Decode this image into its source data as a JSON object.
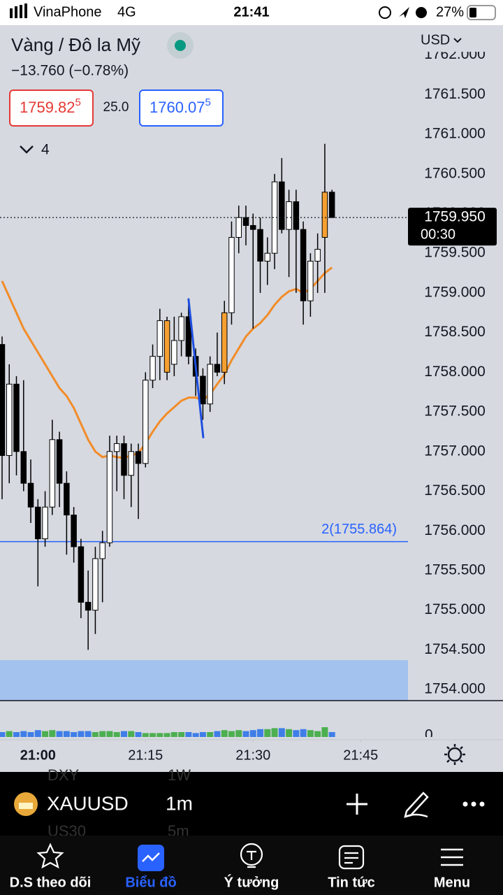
{
  "status_bar": {
    "carrier": "VinaPhone",
    "network": "4G",
    "time": "21:41",
    "battery": "27%"
  },
  "header": {
    "title": "Vàng / Đô la Mỹ",
    "change": "−13.760 (−0.78%)",
    "bid": "1759.82",
    "bid_sup": "5",
    "spread": "25.0",
    "ask": "1760.07",
    "ask_sup": "5",
    "currency": "USD",
    "indicators": "4"
  },
  "chart_data": {
    "type": "candlestick",
    "open": [
      1758.35,
      1756.95,
      1757.85,
      1757.0,
      1756.6,
      1756.3,
      1755.9,
      1756.3,
      1757.15,
      1756.6,
      1756.2,
      1755.8,
      1755.1,
      1755.0,
      1755.65,
      1755.85,
      1757.0,
      1757.1,
      1756.7,
      1757.0,
      1756.85,
      1757.9,
      1758.2,
      1758.0,
      1758.1,
      1758.4,
      1758.7,
      1758.2,
      1757.95,
      1757.6,
      1758.1,
      1758.0,
      1758.75,
      1759.7,
      1759.95,
      1759.85,
      1759.8,
      1759.4,
      1759.5,
      1760.4,
      1759.8,
      1760.15,
      1759.8,
      1758.9,
      1759.4,
      1759.7,
      1760.27
    ],
    "high": [
      1758.45,
      1758.1,
      1757.95,
      1757.9,
      1756.9,
      1756.4,
      1756.5,
      1757.4,
      1757.25,
      1756.75,
      1756.3,
      1755.9,
      1755.5,
      1755.8,
      1756.0,
      1757.2,
      1757.2,
      1757.2,
      1757.1,
      1757.1,
      1758.0,
      1758.35,
      1758.8,
      1758.7,
      1758.7,
      1758.75,
      1758.85,
      1758.3,
      1758.05,
      1758.2,
      1758.5,
      1758.9,
      1759.9,
      1760.1,
      1760.1,
      1760.0,
      1759.95,
      1759.7,
      1760.5,
      1760.7,
      1760.3,
      1760.3,
      1759.9,
      1759.5,
      1759.75,
      1760.88,
      1760.3
    ],
    "low": [
      1756.4,
      1756.6,
      1756.7,
      1756.5,
      1756.1,
      1755.3,
      1755.8,
      1756.2,
      1756.3,
      1755.7,
      1755.6,
      1754.9,
      1754.5,
      1754.7,
      1755.1,
      1755.8,
      1756.5,
      1756.4,
      1756.3,
      1756.15,
      1756.8,
      1757.8,
      1757.9,
      1757.9,
      1757.95,
      1758.2,
      1758.1,
      1757.7,
      1757.4,
      1757.5,
      1757.95,
      1757.85,
      1758.6,
      1759.5,
      1759.6,
      1758.55,
      1759.0,
      1759.1,
      1759.3,
      1759.75,
      1759.2,
      1759.0,
      1758.6,
      1758.7,
      1759.0,
      1759.0,
      1759.95
    ],
    "close": [
      1756.95,
      1757.85,
      1757.0,
      1756.6,
      1756.3,
      1755.9,
      1756.3,
      1757.15,
      1756.6,
      1756.2,
      1755.8,
      1755.1,
      1755.0,
      1755.65,
      1755.85,
      1757.0,
      1757.1,
      1756.7,
      1757.0,
      1756.85,
      1757.9,
      1758.2,
      1758.65,
      1758.65,
      1758.4,
      1758.7,
      1758.2,
      1757.95,
      1757.6,
      1758.1,
      1758.0,
      1758.75,
      1759.7,
      1759.95,
      1759.85,
      1759.8,
      1759.4,
      1759.5,
      1760.4,
      1759.8,
      1760.15,
      1759.8,
      1758.9,
      1759.4,
      1759.55,
      1760.27,
      1759.95
    ],
    "colors": [
      "#000000",
      "#ffffff",
      "#000000",
      "#000000",
      "#000000",
      "#000000",
      "#ffffff",
      "#ffffff",
      "#000000",
      "#000000",
      "#000000",
      "#000000",
      "#000000",
      "#ffffff",
      "#ffffff",
      "#ffffff",
      "#ffffff",
      "#000000",
      "#ffffff",
      "#000000",
      "#ffffff",
      "#ffffff",
      "#ffffff",
      "#f5a031",
      "#ffffff",
      "#ffffff",
      "#000000",
      "#000000",
      "#000000",
      "#ffffff",
      "#000000",
      "#f5a031",
      "#ffffff",
      "#ffffff",
      "#000000",
      "#000000",
      "#000000",
      "#ffffff",
      "#ffffff",
      "#000000",
      "#ffffff",
      "#000000",
      "#000000",
      "#ffffff",
      "#ffffff",
      "#f5a031",
      "#000000"
    ],
    "ma": {
      "color": "#f28c28",
      "values": [
        1759.15,
        1758.95,
        1758.75,
        1758.55,
        1758.4,
        1758.25,
        1758.1,
        1757.95,
        1757.8,
        1757.7,
        1757.55,
        1757.35,
        1757.15,
        1757.0,
        1756.93,
        1756.95,
        1756.93,
        1756.92,
        1756.95,
        1756.98,
        1757.1,
        1757.25,
        1757.38,
        1757.48,
        1757.56,
        1757.64,
        1757.68,
        1757.68,
        1757.65,
        1757.72,
        1757.85,
        1757.97,
        1758.15,
        1758.3,
        1758.45,
        1758.55,
        1758.62,
        1758.72,
        1758.85,
        1758.95,
        1759.02,
        1759.05,
        1759.0,
        1759.05,
        1759.15,
        1759.25,
        1759.32
      ]
    },
    "volume": {
      "values": [
        5,
        6,
        5,
        6,
        5,
        7,
        6,
        7,
        6,
        6,
        5,
        6,
        6,
        5,
        6,
        6,
        5,
        6,
        6,
        5,
        4,
        4,
        4,
        4,
        5,
        5,
        5,
        4,
        5,
        5,
        6,
        7,
        6,
        7,
        6,
        7,
        8,
        8,
        9,
        9,
        8,
        7,
        8,
        7,
        6,
        10,
        5
      ],
      "up_color": "#4caf50",
      "down_color": "#3f7ee8",
      "yticks": [
        0
      ]
    },
    "trendline": {
      "x": [
        26.0,
        28.05
      ],
      "y": [
        1758.92,
        1757.18
      ],
      "color": "#1e4fe0"
    },
    "hline": {
      "value": 1755.864,
      "label": "2(1755.864)",
      "color": "#2962ff"
    },
    "zone": {
      "top": 1754.37,
      "color": "#a3c2ee"
    },
    "last_price": {
      "value": 1759.95,
      "label": "1759.950",
      "countdown": "00:30"
    },
    "xlim": [
      -0.29,
      56.6
    ],
    "xticks": [
      {
        "value": 5,
        "label": "21:00"
      },
      {
        "value": 20,
        "label": "21:15"
      },
      {
        "value": 35,
        "label": "21:30"
      },
      {
        "value": 50,
        "label": "21:45"
      }
    ],
    "ylim": [
      1753.86,
      1762.34
    ],
    "yticks": [
      {
        "value": 1762,
        "label": "1762.000"
      },
      {
        "value": 1761.5,
        "label": "1761.500"
      },
      {
        "value": 1761,
        "label": "1761.000"
      },
      {
        "value": 1760.5,
        "label": "1760.500"
      },
      {
        "value": 1760,
        "label": "1760.000"
      },
      {
        "value": 1759.5,
        "label": "1759.500"
      },
      {
        "value": 1759,
        "label": "1759.000"
      },
      {
        "value": 1758.5,
        "label": "1758.500"
      },
      {
        "value": 1758,
        "label": "1758.000"
      },
      {
        "value": 1757.5,
        "label": "1757.500"
      },
      {
        "value": 1757,
        "label": "1757.000"
      },
      {
        "value": 1756.5,
        "label": "1756.500"
      },
      {
        "value": 1756,
        "label": "1756.000"
      },
      {
        "value": 1755.5,
        "label": "1755.500"
      },
      {
        "value": 1755,
        "label": "1755.000"
      },
      {
        "value": 1754.5,
        "label": "1754.500"
      },
      {
        "value": 1754,
        "label": "1754.000"
      }
    ]
  },
  "toolbar": {
    "symbol": "XAUUSD",
    "interval": "1m",
    "ghost": [
      "DXY",
      "1W",
      "US30",
      "5m"
    ]
  },
  "tabs": [
    "D.S theo dõi",
    "Biểu đồ",
    "Ý tưởng",
    "Tin tức",
    "Menu"
  ]
}
